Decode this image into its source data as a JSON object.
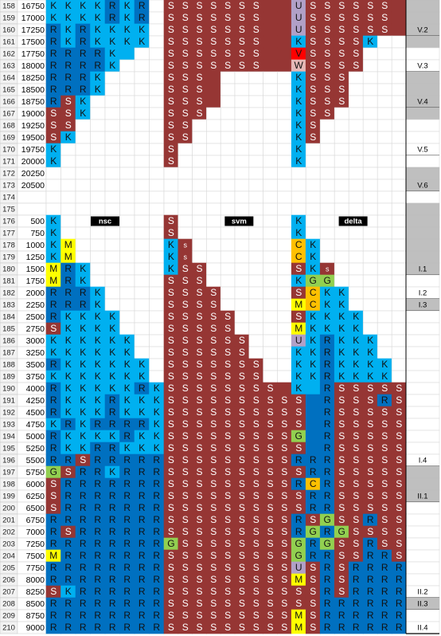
{
  "palette": {
    "k": "#00b0f0",
    "r": "#0070c0",
    "s": "#963634",
    "u": "#b1a0c7",
    "w": "#e6b8b7",
    "m": "#ffff00",
    "c": "#ffc000",
    "g": "#92d050",
    "v": "#ff0000",
    "x": "#bfbfbf"
  },
  "rows": [
    {
      "row": "158",
      "value": "16750",
      "cells": [
        "KKKKRKR",
        "SSSSSSS",
        "USSSSSS"
      ],
      "fills": [
        "kkkkrkr",
        "sssssssss",
        "usssssss"
      ],
      "shade": true
    },
    {
      "row": "159",
      "value": "17000",
      "cells": [
        "KKKKRKR",
        "SSSSSSS",
        "USSSSSS"
      ],
      "fills": [
        "kkkkrkr",
        "sssssssss",
        "usssssss"
      ],
      "shade": true
    },
    {
      "row": "160",
      "value": "17250",
      "cells": [
        "RKRKKKK",
        "SSSSSSS",
        "USSSSSS"
      ],
      "fills": [
        "rkrkkkk",
        "sssssssss",
        "usssssss"
      ],
      "shade": true,
      "label": "V.2"
    },
    {
      "row": "161",
      "value": "17500",
      "cells": [
        "RKRKKKK",
        "SSSSSSS",
        "KSSSSK"
      ],
      "fills": [
        "rkrkkkk",
        "sssssssss",
        "kssssk"
      ],
      "shade": true
    },
    {
      "row": "162",
      "value": "17750",
      "cells": [
        "RRRRK",
        "SSSSSSS",
        "VSSSS"
      ],
      "fills": [
        "rrrrkk",
        "sssssssss",
        "vssss"
      ]
    },
    {
      "row": "163",
      "value": "18000",
      "cells": [
        "RRRRK",
        "SSSSSSS",
        "WSSSS"
      ],
      "fills": [
        "rrrrk",
        "sssssssss",
        "wssss"
      ],
      "label": "V.3"
    },
    {
      "row": "164",
      "value": "18250",
      "cells": [
        "RRRK",
        "SSS",
        "KSSS"
      ],
      "fills": [
        "rrrk",
        "ssss",
        "ksss"
      ],
      "shade": true
    },
    {
      "row": "165",
      "value": "18500",
      "cells": [
        "RRRK",
        "SSS",
        "KSSS"
      ],
      "fills": [
        "rrrk",
        "ssss",
        "ksss"
      ],
      "shade": true
    },
    {
      "row": "166",
      "value": "18750",
      "cells": [
        "RSK",
        "SSS",
        "KSSS"
      ],
      "fills": [
        "rsk",
        "ssss",
        "ksss"
      ],
      "shade": true,
      "label": "V.4"
    },
    {
      "row": "167",
      "value": "19000",
      "cells": [
        "SSK",
        "SSS",
        "KSS"
      ],
      "fills": [
        "ssk",
        "sss",
        "kss"
      ],
      "shade": true
    },
    {
      "row": "168",
      "value": "19250",
      "cells": [
        "SS",
        "SS",
        "KS"
      ],
      "fills": [
        "ss",
        "ss",
        "ks"
      ]
    },
    {
      "row": "169",
      "value": "19500",
      "cells": [
        "SK",
        "SS",
        "KS"
      ],
      "fills": [
        "sk",
        "ss",
        "ks"
      ]
    },
    {
      "row": "170",
      "value": "19750",
      "cells": [
        "K",
        "S",
        "K"
      ],
      "fills": [
        "k",
        "s",
        "k"
      ],
      "label": "V.5"
    },
    {
      "row": "171",
      "value": "20000",
      "cells": [
        "K",
        "S",
        "K"
      ],
      "fills": [
        "k",
        "s",
        "k"
      ]
    },
    {
      "row": "172",
      "value": "20250",
      "shade": true
    },
    {
      "row": "173",
      "value": "20500",
      "shade": true,
      "label": "V.6"
    },
    {
      "row": "174"
    },
    {
      "row": "175",
      "shade": true
    },
    {
      "row": "176",
      "value": "500",
      "cells": [
        "K",
        "S",
        "K"
      ],
      "fills": [
        "k",
        "s",
        "k"
      ],
      "shade": true,
      "group_label": [
        "nsc",
        "svm",
        "delta"
      ]
    },
    {
      "row": "177",
      "value": "750",
      "cells": [
        "K",
        "S",
        "K"
      ],
      "fills": [
        "k",
        "s",
        "k"
      ],
      "shade": true
    },
    {
      "row": "178",
      "value": "1000",
      "cells": [
        "KM",
        "Ks",
        "CK"
      ],
      "fills": [
        "km",
        "ks",
        "ck"
      ],
      "shade": true
    },
    {
      "row": "179",
      "value": "1250",
      "cells": [
        "KM",
        "Ks",
        "CK"
      ],
      "fills": [
        "km",
        "ks",
        "ck"
      ],
      "shade": true
    },
    {
      "row": "180",
      "value": "1500",
      "cells": [
        "MRK",
        "KSS",
        "SKs"
      ],
      "fills": [
        "mrk",
        "kss",
        "sks"
      ],
      "shade": true,
      "label": "I.1"
    },
    {
      "row": "181",
      "value": "1750",
      "cells": [
        "MRK",
        "SSS",
        "KGG"
      ],
      "fills": [
        "mrk",
        "sss",
        "kgg"
      ]
    },
    {
      "row": "182",
      "value": "2000",
      "cells": [
        "RRRK",
        "SSSS",
        "SCKK"
      ],
      "fills": [
        "rrrk",
        "ssss",
        "sckk"
      ],
      "label": "I.2"
    },
    {
      "row": "183",
      "value": "2250",
      "cells": [
        "RRRK",
        "SSSS",
        "MCKK"
      ],
      "fills": [
        "rrrk",
        "ssss",
        "mckk"
      ],
      "shade": true,
      "label": "I.3"
    },
    {
      "row": "184",
      "value": "2500",
      "cells": [
        "RKKKK",
        "SSSSS",
        "SKKKK"
      ],
      "fills": [
        "rkkkk",
        "sssss",
        "skkkk"
      ]
    },
    {
      "row": "185",
      "value": "2750",
      "cells": [
        "SKKKK",
        "SSSSS",
        "MKKKK"
      ],
      "fills": [
        "skkkk",
        "sssss",
        "mkkkk"
      ]
    },
    {
      "row": "186",
      "value": "3000",
      "cells": [
        "KKKKKK",
        "SSSSSS",
        "UKRKKK"
      ],
      "fills": [
        "kkkkkk",
        "ssssss",
        "ukrkkk"
      ]
    },
    {
      "row": "187",
      "value": "3250",
      "cells": [
        "KKKKKK",
        "SSSSSS",
        "KKRKKK"
      ],
      "fills": [
        "kkkkkk",
        "ssssss",
        "kkrkkk"
      ]
    },
    {
      "row": "188",
      "value": "3500",
      "cells": [
        "RKKKKKK",
        "SSSSSSS",
        "KKRKKKK"
      ],
      "fills": [
        "rkkkkkk",
        "sssssss",
        "kkrkkkk"
      ]
    },
    {
      "row": "189",
      "value": "3750",
      "cells": [
        "KKKKKKK",
        "SSSSSSS",
        "KKRKKKK"
      ],
      "fills": [
        "kkkkkkk",
        "sssssss",
        "kkrkkkk"
      ]
    },
    {
      "row": "190",
      "value": "4000",
      "cells": [
        "RKKKKKRK",
        "SSSSSSSS",
        "K RSSSSS"
      ],
      "fills": [
        "rkkkkkrk",
        "sssssssss",
        "kkrsssss"
      ]
    },
    {
      "row": "191",
      "value": "4250",
      "cells": [
        "RKKKRKKK",
        "SSSSSSSSS",
        "S RSSSRS"
      ],
      "fills": [
        "rkkkrkkk",
        "sssssssss",
        "srrsssrs"
      ]
    },
    {
      "row": "192",
      "value": "4500",
      "cells": [
        "RKKKRKKK",
        "SSSSSSSSS",
        "S RSSSSS"
      ],
      "fills": [
        "rkkkrkkk",
        "sssssssss",
        "srrsssss"
      ]
    },
    {
      "row": "193",
      "value": "4750",
      "cells": [
        "KRKRRRRK",
        "SSSSSSSSS",
        "S RSSSSS"
      ],
      "fills": [
        "krkrrrrk",
        "sssssssss",
        "srrsssss"
      ]
    },
    {
      "row": "194",
      "value": "5000",
      "cells": [
        "RKKKKRKK",
        "SSSSSSSSS",
        "G RSSSSS"
      ],
      "fills": [
        "rkkkkrkk",
        "sssssssss",
        "grrsssss"
      ]
    },
    {
      "row": "195",
      "value": "5250",
      "cells": [
        "RKKRRKKK",
        "SSSSSSSSS",
        "S RSSSSS"
      ],
      "fills": [
        "rkkrrkkk",
        "sssssssss",
        "srrsssss"
      ]
    },
    {
      "row": "196",
      "value": "5500",
      "cells": [
        "RRSRRRRR",
        "SSSSSSSSS",
        "RRRSSSSS"
      ],
      "fills": [
        "rrsrrrrr",
        "sssssssss",
        "rrrsssss"
      ],
      "label": "I.4"
    },
    {
      "row": "197",
      "value": "5750",
      "cells": [
        "GSRRKRRR",
        "SSSSSSSSS",
        "SRRSSSSS"
      ],
      "fills": [
        "gsrrkrrr",
        "sssssssss",
        "srrsssss"
      ],
      "shade": true
    },
    {
      "row": "198",
      "value": "6000",
      "cells": [
        "SRRRRRRR",
        "SSSSSSSSS",
        "RCRSSSSS"
      ],
      "fills": [
        "srrrrrrr",
        "sssssssss",
        "rcrsssss"
      ],
      "shade": true
    },
    {
      "row": "199",
      "value": "6250",
      "cells": [
        "SRRRRRRR",
        "SSSSSSSSS",
        "SRRSSSSS"
      ],
      "fills": [
        "srrrrrrr",
        "sssssssss",
        "srrsssss"
      ],
      "shade": true,
      "label": "II.1"
    },
    {
      "row": "200",
      "value": "6500",
      "cells": [
        "SRRRRRRR",
        "SSSSSSSSS",
        "SRRSSSSS"
      ],
      "fills": [
        "srrrrrrr",
        "sssssssss",
        "srrsssss"
      ]
    },
    {
      "row": "201",
      "value": "6750",
      "cells": [
        "RRRRRRRR",
        "SSSSSSSSS",
        "RSGSSRSS"
      ],
      "fills": [
        "rrrrrrrr",
        "sssssssss",
        "rsgssrss"
      ]
    },
    {
      "row": "202",
      "value": "7000",
      "cells": [
        "RSRRRRRR",
        "SSSSSSSSS",
        "RGRGSSSS"
      ],
      "fills": [
        "rsrrrrrr",
        "sssssssss",
        "rgrgssss"
      ]
    },
    {
      "row": "203",
      "value": "7250",
      "cells": [
        "RRRRRRRR",
        "GSSSSSSSS",
        "GRGSSRSS"
      ],
      "fills": [
        "rrrrrrrr",
        "gssssssss",
        "grgssrss"
      ]
    },
    {
      "row": "204",
      "value": "7500",
      "cells": [
        "MRRRRRRR",
        "SSSSSSSSS",
        "GRRSSRRS"
      ],
      "fills": [
        "mrrrrrrr",
        "sssssssss",
        "grrssrrs"
      ]
    },
    {
      "row": "205",
      "value": "7750",
      "cells": [
        "RRRRRRRR",
        "SSSSSSSSS",
        "USRSRRRR"
      ],
      "fills": [
        "rrrrrrrr",
        "sssssssss",
        "usrsrrrr"
      ]
    },
    {
      "row": "206",
      "value": "8000",
      "cells": [
        "RRRRRRRR",
        "SSSSSSSSS",
        "MSRSRRRR"
      ],
      "fills": [
        "rrrrrrrr",
        "sssssssss",
        "msrsrrrr"
      ]
    },
    {
      "row": "207",
      "value": "8250",
      "cells": [
        "SKRRRRRR",
        "SSSSSSSSS",
        "SSRSRRRR"
      ],
      "fills": [
        "skrrrrrr",
        "sssssssss",
        "ssrsrrrr"
      ],
      "label": "II.2"
    },
    {
      "row": "208",
      "value": "8500",
      "cells": [
        "RRRRRRRR",
        "SSSSSSSSS",
        "SSRRRRRR"
      ],
      "fills": [
        "rrrrrrrr",
        "sssssssss",
        "ssrrrrrr"
      ],
      "shade": true,
      "label": "II.3"
    },
    {
      "row": "209",
      "value": "8750",
      "cells": [
        "RRRRRRRR",
        "SSSSSSSSS",
        "MSRRRRRR"
      ],
      "fills": [
        "rrrrrrrr",
        "sssssssss",
        "msrrrrrr"
      ]
    },
    {
      "row": "210",
      "value": "9000",
      "cells": [
        "RRRRRRRR",
        "SSSSSSSSS",
        "MSRRRRRR"
      ],
      "fills": [
        "rrrrrrrr",
        "sssssssss",
        "msrrrrrr"
      ],
      "label": "II.4"
    }
  ]
}
